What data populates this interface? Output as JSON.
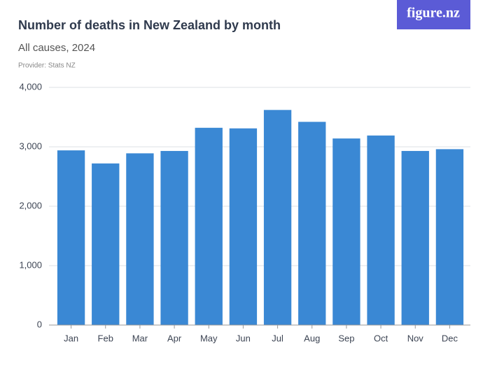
{
  "chart_data": {
    "type": "bar",
    "title": "Number of deaths in New Zealand by month",
    "subtitle": "All causes, 2024",
    "source": "Provider: Stats NZ",
    "logo": "figure.nz",
    "categories": [
      "Jan",
      "Feb",
      "Mar",
      "Apr",
      "May",
      "Jun",
      "Jul",
      "Aug",
      "Sep",
      "Oct",
      "Nov",
      "Dec"
    ],
    "values": [
      2940,
      2720,
      2890,
      2930,
      3320,
      3310,
      3620,
      3420,
      3140,
      3190,
      2930,
      2960
    ],
    "color": "#3a88d4",
    "ylim": [
      0,
      4000
    ],
    "yticks": [
      0,
      {
        "value": 1000,
        "label": "1,000"
      },
      {
        "value": 2000,
        "label": "2,000"
      },
      {
        "value": 3000,
        "label": "3,000"
      },
      {
        "value": 4000,
        "label": "4,000"
      }
    ],
    "grid": true
  }
}
